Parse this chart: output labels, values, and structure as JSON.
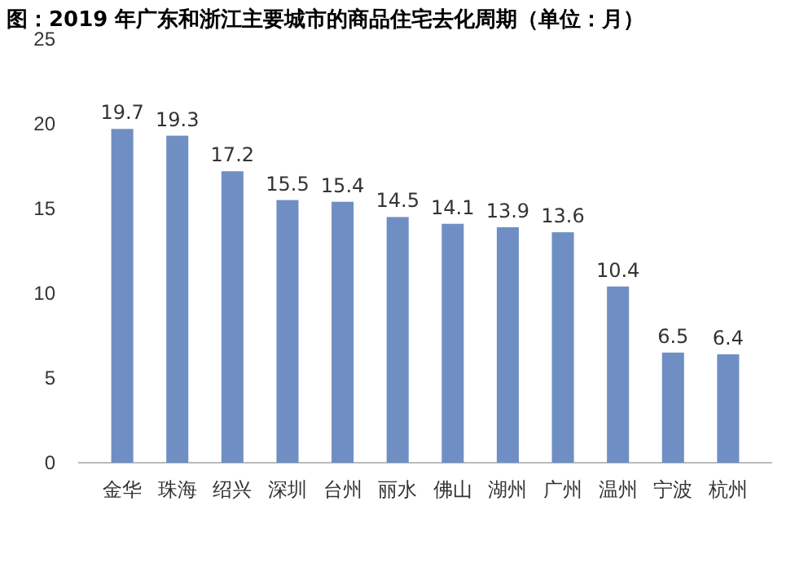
{
  "chart_data": {
    "type": "bar",
    "title": "图：2019 年广东和浙江主要城市的商品住宅去化周期（单位：月）",
    "categories": [
      "金华",
      "珠海",
      "绍兴",
      "深圳",
      "台州",
      "丽水",
      "佛山",
      "湖州",
      "广州",
      "温州",
      "宁波",
      "杭州"
    ],
    "values": [
      19.7,
      19.3,
      17.2,
      15.5,
      15.4,
      14.5,
      14.1,
      13.9,
      13.6,
      10.4,
      6.5,
      6.4
    ],
    "color": "#6f8fc4",
    "ylim": [
      0,
      25
    ],
    "yticks": [
      0,
      5,
      10,
      15,
      20,
      25
    ],
    "data_labels": true
  }
}
